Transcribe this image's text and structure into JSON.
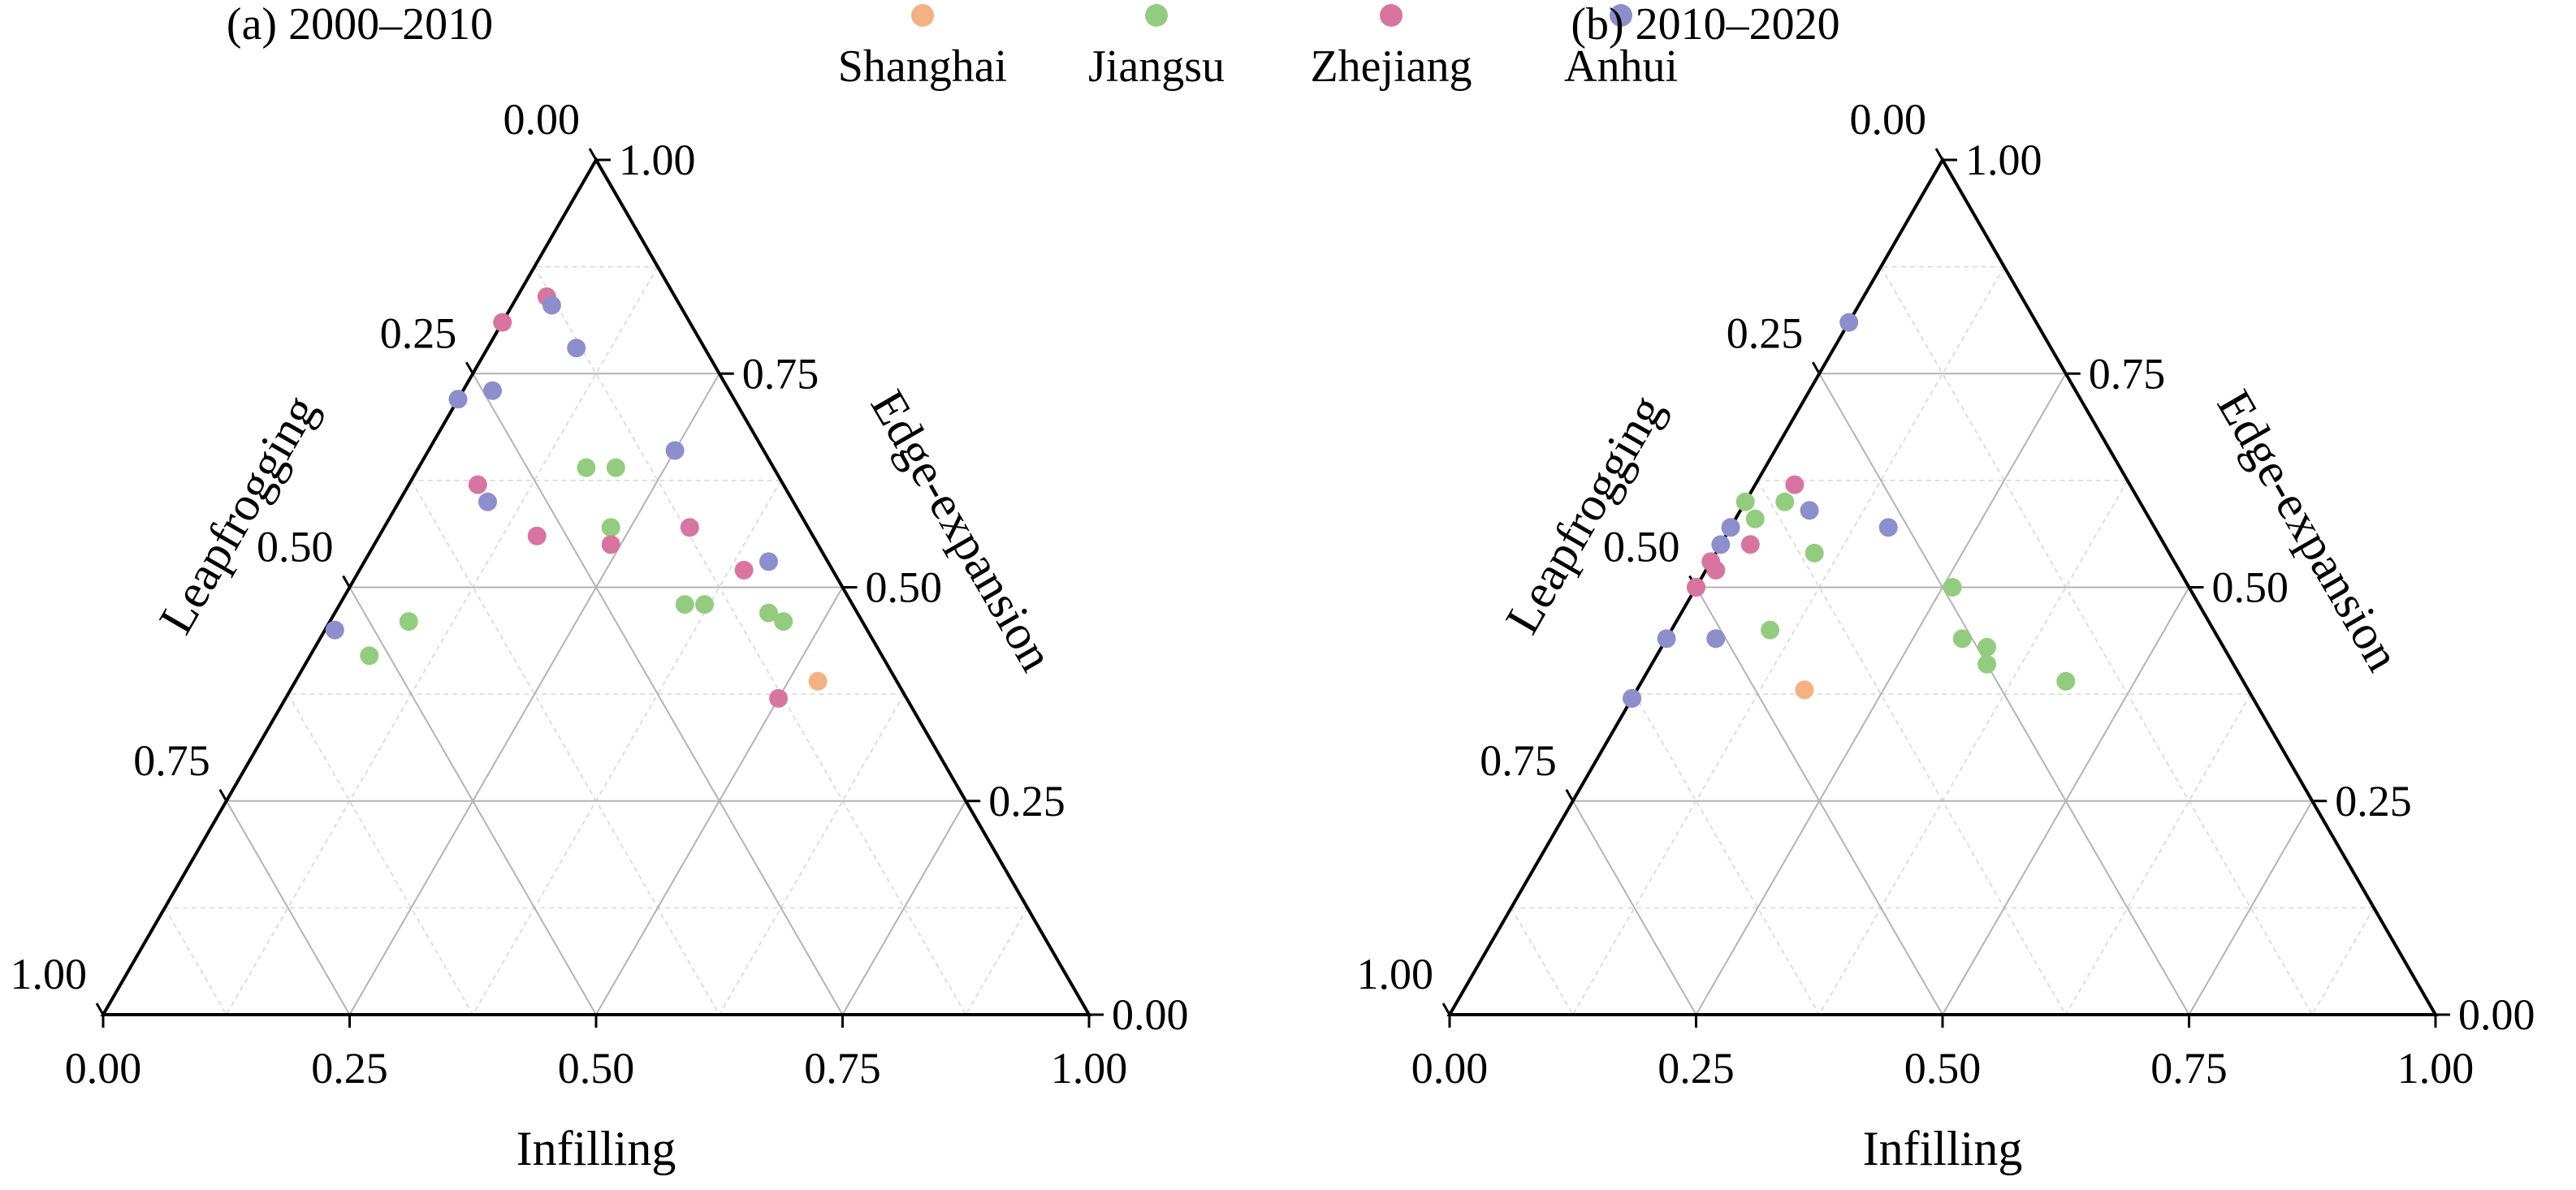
{
  "chart_data": {
    "type": "ternary-scatter",
    "legend": {
      "position": "top-center",
      "entries": [
        {
          "name": "Shanghai",
          "color": "#F4B183"
        },
        {
          "name": "Jiangsu",
          "color": "#93CC7F"
        },
        {
          "name": "Zhejiang",
          "color": "#D775A0"
        },
        {
          "name": "Anhui",
          "color": "#8C8FCB"
        }
      ]
    },
    "axes": {
      "bottom": {
        "label": "Infilling",
        "ticks": [
          "0.00",
          "0.25",
          "0.50",
          "0.75",
          "1.00"
        ],
        "range": [
          0,
          1
        ]
      },
      "left": {
        "label": "Leapfrogging",
        "ticks": [
          "0.00",
          "0.25",
          "0.50",
          "0.75",
          "1.00"
        ],
        "range": [
          0,
          1
        ]
      },
      "right": {
        "label": "Edge-expansion",
        "ticks": [
          "1.00",
          "0.75",
          "0.50",
          "0.25",
          "0.00"
        ],
        "range": [
          0,
          1
        ]
      }
    },
    "grid": true,
    "panels": [
      {
        "title": "(a)  2000–2010",
        "points": [
          {
            "series": "Zhejiang",
            "infilling": 0.03,
            "edge": 0.84
          },
          {
            "series": "Anhui",
            "infilling": 0.04,
            "edge": 0.83
          },
          {
            "series": "Zhejiang",
            "infilling": 0.0,
            "edge": 0.81
          },
          {
            "series": "Anhui",
            "infilling": 0.09,
            "edge": 0.78
          },
          {
            "series": "Anhui",
            "infilling": 0.03,
            "edge": 0.73
          },
          {
            "series": "Anhui",
            "infilling": 0.0,
            "edge": 0.72
          },
          {
            "series": "Zhejiang",
            "infilling": 0.07,
            "edge": 0.62
          },
          {
            "series": "Anhui",
            "infilling": 0.09,
            "edge": 0.6
          },
          {
            "series": "Jiangsu",
            "infilling": 0.17,
            "edge": 0.64
          },
          {
            "series": "Jiangsu",
            "infilling": 0.2,
            "edge": 0.64
          },
          {
            "series": "Anhui",
            "infilling": 0.25,
            "edge": 0.66
          },
          {
            "series": "Zhejiang",
            "infilling": 0.16,
            "edge": 0.56
          },
          {
            "series": "Jiangsu",
            "infilling": 0.23,
            "edge": 0.57
          },
          {
            "series": "Zhejiang",
            "infilling": 0.24,
            "edge": 0.55
          },
          {
            "series": "Zhejiang",
            "infilling": 0.31,
            "edge": 0.57
          },
          {
            "series": "Zhejiang",
            "infilling": 0.39,
            "edge": 0.52
          },
          {
            "series": "Anhui",
            "infilling": 0.41,
            "edge": 0.53
          },
          {
            "series": "Jiangsu",
            "infilling": 0.35,
            "edge": 0.48
          },
          {
            "series": "Jiangsu",
            "infilling": 0.37,
            "edge": 0.48
          },
          {
            "series": "Jiangsu",
            "infilling": 0.44,
            "edge": 0.47
          },
          {
            "series": "Jiangsu",
            "infilling": 0.46,
            "edge": 0.46
          },
          {
            "series": "Zhejiang",
            "infilling": 0.5,
            "edge": 0.37
          },
          {
            "series": "Shanghai",
            "infilling": 0.53,
            "edge": 0.39
          },
          {
            "series": "Anhui",
            "infilling": 0.01,
            "edge": 0.45
          },
          {
            "series": "Jiangsu",
            "infilling": 0.08,
            "edge": 0.46
          },
          {
            "series": "Jiangsu",
            "infilling": 0.06,
            "edge": 0.42
          }
        ]
      },
      {
        "title": "(b) 2010–2020",
        "points": [
          {
            "series": "Anhui",
            "infilling": 0.0,
            "edge": 0.81
          },
          {
            "series": "Zhejiang",
            "infilling": 0.04,
            "edge": 0.62
          },
          {
            "series": "Jiangsu",
            "infilling": 0.0,
            "edge": 0.6
          },
          {
            "series": "Jiangsu",
            "infilling": 0.04,
            "edge": 0.6
          },
          {
            "series": "Jiangsu",
            "infilling": 0.02,
            "edge": 0.58
          },
          {
            "series": "Anhui",
            "infilling": 0.07,
            "edge": 0.59
          },
          {
            "series": "Anhui",
            "infilling": 0.16,
            "edge": 0.57
          },
          {
            "series": "Anhui",
            "infilling": 0.0,
            "edge": 0.57
          },
          {
            "series": "Anhui",
            "infilling": 0.0,
            "edge": 0.55
          },
          {
            "series": "Zhejiang",
            "infilling": 0.03,
            "edge": 0.55
          },
          {
            "series": "Zhejiang",
            "infilling": 0.0,
            "edge": 0.53
          },
          {
            "series": "Zhejiang",
            "infilling": 0.01,
            "edge": 0.52
          },
          {
            "series": "Zhejiang",
            "infilling": 0.0,
            "edge": 0.5
          },
          {
            "series": "Zhejiang",
            "infilling": 0.0,
            "edge": 0.5
          },
          {
            "series": "Jiangsu",
            "infilling": 0.1,
            "edge": 0.54
          },
          {
            "series": "Anhui",
            "infilling": 0.05,
            "edge": 0.44
          },
          {
            "series": "Jiangsu",
            "infilling": 0.1,
            "edge": 0.45
          },
          {
            "series": "Jiangsu",
            "infilling": 0.26,
            "edge": 0.5
          },
          {
            "series": "Anhui",
            "infilling": 0.0,
            "edge": 0.44
          },
          {
            "series": "Zhejiang",
            "infilling": 0.0,
            "edge": 0.37
          },
          {
            "series": "Anhui",
            "infilling": 0.0,
            "edge": 0.37
          },
          {
            "series": "Shanghai",
            "infilling": 0.17,
            "edge": 0.38
          },
          {
            "series": "Jiangsu",
            "infilling": 0.3,
            "edge": 0.44
          },
          {
            "series": "Jiangsu",
            "infilling": 0.33,
            "edge": 0.43
          },
          {
            "series": "Jiangsu",
            "infilling": 0.34,
            "edge": 0.41
          },
          {
            "series": "Jiangsu",
            "infilling": 0.43,
            "edge": 0.39
          }
        ]
      }
    ]
  }
}
